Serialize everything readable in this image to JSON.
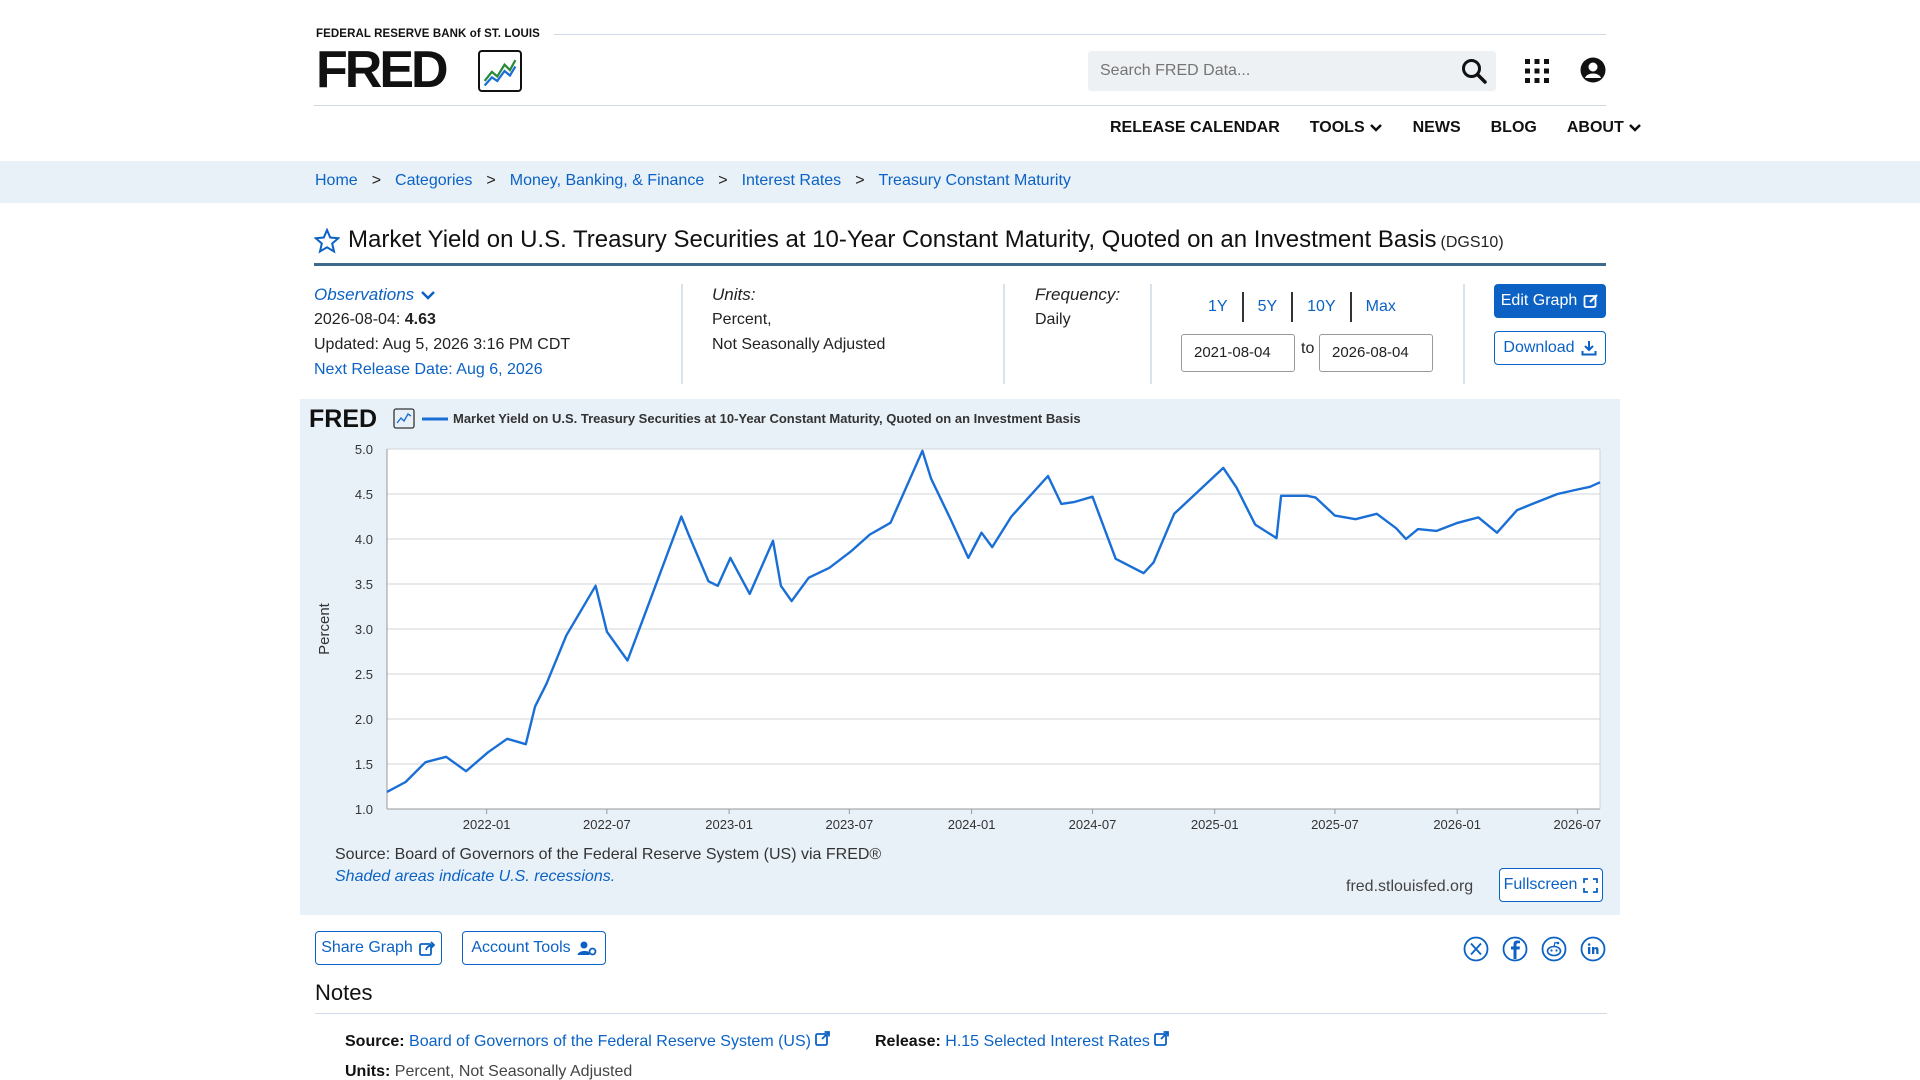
{
  "header": {
    "org": "FEDERAL RESERVE BANK of ST. LOUIS",
    "logo": "FRED",
    "search_placeholder": "Search FRED Data...",
    "nav": [
      {
        "label": "RELEASE CALENDAR",
        "chevron": false
      },
      {
        "label": "TOOLS",
        "chevron": true
      },
      {
        "label": "NEWS",
        "chevron": false
      },
      {
        "label": "BLOG",
        "chevron": false
      },
      {
        "label": "ABOUT",
        "chevron": true
      }
    ]
  },
  "breadcrumb": [
    "Home",
    "Categories",
    "Money, Banking, & Finance",
    "Interest Rates",
    "Treasury Constant Maturity"
  ],
  "breadcrumb_sep": ">",
  "series": {
    "title": "Market Yield on U.S. Treasury Securities at 10-Year Constant Maturity, Quoted on an Investment Basis",
    "code": "(DGS10)"
  },
  "meta": {
    "observations_label": "Observations",
    "obs_date": "2026-08-04:",
    "obs_value": "4.63",
    "updated": "Updated: Aug 5, 2026 3:16 PM CDT",
    "next_release": "Next Release Date: Aug 6, 2026",
    "units_label": "Units:",
    "units_line1": "Percent,",
    "units_line2": "Not Seasonally Adjusted",
    "frequency_label": "Frequency:",
    "frequency": "Daily",
    "ranges": [
      "1Y",
      "5Y",
      "10Y",
      "Max"
    ],
    "date_from": "2021-08-04",
    "date_to_label": "to",
    "date_to": "2026-08-04",
    "edit_graph": "Edit Graph",
    "download": "Download"
  },
  "graph": {
    "logo": "FRED",
    "source": "Source: Board of Governors of the Federal Reserve System (US) via FRED®",
    "shaded_note": "Shaded areas indicate U.S. recessions.",
    "url": "fred.stlouisfed.org",
    "fullscreen": "Fullscreen"
  },
  "actions": {
    "share": "Share Graph",
    "account": "Account Tools"
  },
  "social": [
    "x-icon",
    "facebook-icon",
    "reddit-icon",
    "linkedin-icon"
  ],
  "notes": {
    "title": "Notes",
    "source_label": "Source:",
    "source_value": "Board of Governors of the Federal Reserve System (US)",
    "release_label": "Release:",
    "release_value": "H.15 Selected Interest Rates",
    "units_label": "Units:",
    "units_value": "Percent, Not Seasonally Adjusted"
  },
  "colors": {
    "accent": "#0b62c4",
    "line": "#1a6fd6",
    "panel_bg": "#e9f1f8"
  },
  "chart_data": {
    "type": "line",
    "title": "Market Yield on U.S. Treasury Securities at 10-Year Constant Maturity, Quoted on an Investment Basis",
    "xlabel": "",
    "ylabel": "Percent",
    "ylim": [
      1.0,
      5.0
    ],
    "yticks": [
      "1.0",
      "1.5",
      "2.0",
      "2.5",
      "3.0",
      "3.5",
      "4.0",
      "4.5",
      "5.0"
    ],
    "xticks": [
      "2022-01",
      "2022-07",
      "2023-01",
      "2023-07",
      "2024-01",
      "2024-07",
      "2025-01",
      "2025-07",
      "2026-01",
      "2026-07"
    ],
    "xlim": [
      "2021-08-04",
      "2026-08-04"
    ],
    "grid": true,
    "legend": "top-left",
    "series": [
      {
        "name": "Market Yield on U.S. Treasury Securities at 10-Year Constant Maturity, Quoted on an Investment Basis",
        "x": [
          "2021-08-04",
          "2021-09-01",
          "2021-10-01",
          "2021-11-01",
          "2021-12-01",
          "2022-01-03",
          "2022-02-01",
          "2022-03-01",
          "2022-03-15",
          "2022-04-01",
          "2022-05-01",
          "2022-06-14",
          "2022-07-01",
          "2022-08-01",
          "2022-09-01",
          "2022-10-21",
          "2022-11-01",
          "2022-12-01",
          "2022-12-15",
          "2023-01-03",
          "2023-02-01",
          "2023-03-08",
          "2023-03-20",
          "2023-04-05",
          "2023-05-01",
          "2023-06-01",
          "2023-07-03",
          "2023-08-01",
          "2023-09-01",
          "2023-10-19",
          "2023-11-01",
          "2023-12-01",
          "2023-12-27",
          "2024-01-16",
          "2024-02-01",
          "2024-03-01",
          "2024-04-25",
          "2024-05-15",
          "2024-06-03",
          "2024-07-01",
          "2024-08-05",
          "2024-09-16",
          "2024-10-01",
          "2024-11-01",
          "2025-01-14",
          "2025-02-03",
          "2025-03-03",
          "2025-04-04",
          "2025-04-11",
          "2025-05-20",
          "2025-06-02",
          "2025-07-01",
          "2025-08-01",
          "2025-09-02",
          "2025-10-01",
          "2025-10-16",
          "2025-11-03",
          "2025-12-01",
          "2026-01-02",
          "2026-02-02",
          "2026-03-02",
          "2026-04-01",
          "2026-05-01",
          "2026-06-01",
          "2026-07-01",
          "2026-07-20",
          "2026-08-04"
        ],
        "y": [
          1.19,
          1.3,
          1.52,
          1.58,
          1.42,
          1.63,
          1.78,
          1.72,
          2.14,
          2.39,
          2.93,
          3.48,
          2.97,
          2.65,
          3.26,
          4.25,
          4.05,
          3.53,
          3.48,
          3.79,
          3.39,
          3.98,
          3.48,
          3.31,
          3.57,
          3.68,
          3.86,
          4.05,
          4.18,
          4.98,
          4.67,
          4.21,
          3.79,
          4.07,
          3.91,
          4.25,
          4.7,
          4.39,
          4.41,
          4.47,
          3.78,
          3.62,
          3.74,
          4.28,
          4.79,
          4.57,
          4.16,
          4.01,
          4.48,
          4.48,
          4.46,
          4.26,
          4.22,
          4.28,
          4.12,
          4.0,
          4.11,
          4.09,
          4.18,
          4.24,
          4.07,
          4.32,
          4.41,
          4.5,
          4.55,
          4.58,
          4.63
        ]
      }
    ]
  }
}
